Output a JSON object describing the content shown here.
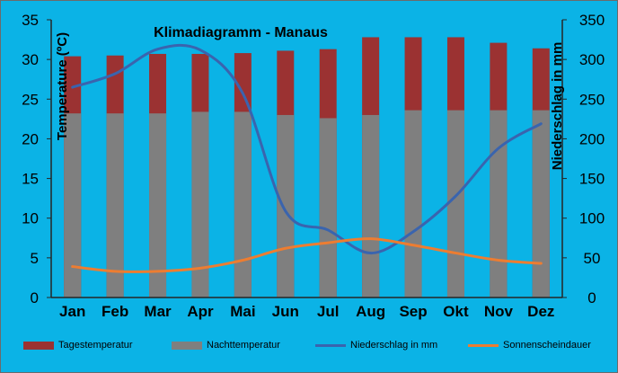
{
  "chart_data": {
    "type": "bar",
    "title": "Klimadiagramm  -  Manaus",
    "categories": [
      "Jan",
      "Feb",
      "Mar",
      "Apr",
      "Mai",
      "Jun",
      "Jul",
      "Aug",
      "Sep",
      "Okt",
      "Nov",
      "Dez"
    ],
    "ylabel": "Temperature (ºC)",
    "y2label": "Niederschlag in mm",
    "ylim": [
      0,
      35
    ],
    "y2lim": [
      0,
      350
    ],
    "yticks": [
      0,
      5,
      10,
      15,
      20,
      25,
      30,
      35
    ],
    "y2ticks": [
      0,
      50,
      100,
      150,
      200,
      250,
      300,
      350
    ],
    "series": [
      {
        "name": "Tagestemperatur",
        "type": "bar",
        "axis": "left",
        "color": "#9b3232",
        "values": [
          30.4,
          30.5,
          30.7,
          30.7,
          30.8,
          31.1,
          31.3,
          32.8,
          32.8,
          32.8,
          32.1,
          31.4
        ]
      },
      {
        "name": "Nachttemperatur",
        "type": "bar",
        "axis": "left",
        "color": "#7f7f7f",
        "values": [
          23.2,
          23.2,
          23.2,
          23.4,
          23.4,
          23.0,
          22.6,
          23.0,
          23.6,
          23.6,
          23.6,
          23.6
        ]
      },
      {
        "name": "Niederschlag in mm",
        "type": "line",
        "axis": "right",
        "color": "#3a64ae",
        "values": [
          265,
          282,
          313,
          312,
          257,
          109,
          85,
          56,
          83,
          128,
          188,
          219
        ]
      },
      {
        "name": "Sonnenscheindauer",
        "type": "line",
        "axis": "left",
        "color": "#ed7d31",
        "values": [
          3.9,
          3.3,
          3.3,
          3.7,
          4.7,
          6.2,
          6.9,
          7.4,
          6.6,
          5.6,
          4.7,
          4.3
        ]
      }
    ],
    "legend_position": "bottom",
    "grid": false
  }
}
